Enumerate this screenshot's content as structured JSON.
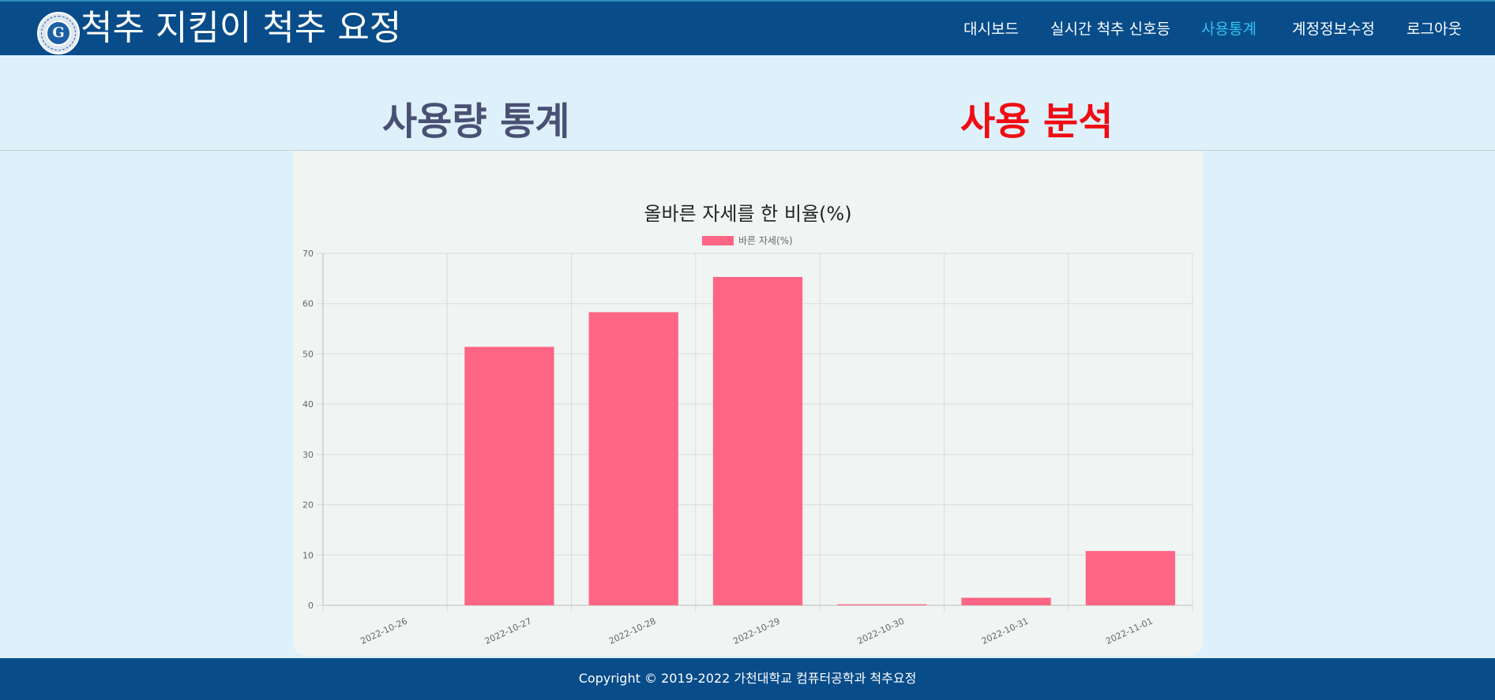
{
  "header": {
    "logo_text": "G",
    "title": "척추 지킴이 척추 요정",
    "nav": [
      {
        "label": "대시보드",
        "active": false
      },
      {
        "label": "실시간 척추 신호등",
        "active": false
      },
      {
        "label": "사용통계",
        "active": true
      },
      {
        "label": "계정정보수정",
        "active": false
      },
      {
        "label": "로그아웃",
        "active": false
      }
    ]
  },
  "sections": {
    "stats_label": "사용량 통계",
    "analysis_label": "사용 분석"
  },
  "chart_data": {
    "type": "bar",
    "title": "올바른 자세를 한 비율(%)",
    "categories": [
      "2022-10-26",
      "2022-10-27",
      "2022-10-28",
      "2022-10-29",
      "2022-10-30",
      "2022-10-31",
      "2022-11-01"
    ],
    "series": [
      {
        "name": "바른 자세(%)",
        "values": [
          0,
          51.4,
          58.3,
          65.3,
          0.2,
          1.5,
          10.8
        ],
        "color": "#ff6584"
      }
    ],
    "ylim": [
      0,
      70
    ],
    "yticks": [
      0,
      10,
      20,
      30,
      40,
      50,
      60,
      70
    ],
    "grid": true,
    "legend": "top"
  },
  "footer": {
    "copyright": "Copyright © 2019-2022 가천대학교 컴퓨터공학과 척추요정"
  }
}
